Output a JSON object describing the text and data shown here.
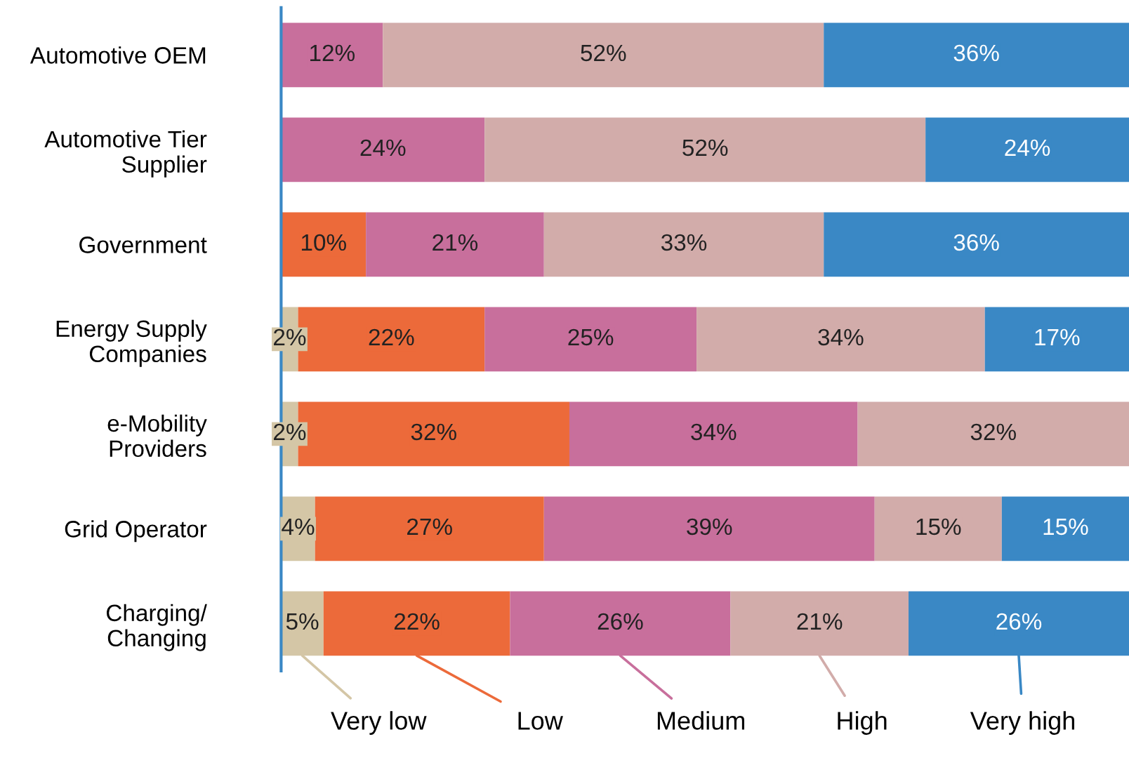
{
  "chart_data": {
    "type": "bar",
    "orientation": "horizontal",
    "stacked": true,
    "xlim": [
      0,
      100
    ],
    "tick_labels": "y",
    "legend": "bottom",
    "grid": false,
    "categories": [
      "Automotive OEM",
      "Automotive Tier\nSupplier",
      "Government",
      "Energy Supply\nCompanies",
      "e-Mobility\nProviders",
      "Grid Operator",
      "Charging/\nChanging"
    ],
    "series": [
      {
        "name": "Very low",
        "color": "#d4c6a6",
        "values": [
          null,
          null,
          null,
          2,
          2,
          4,
          5
        ],
        "value_labels": [
          null,
          null,
          null,
          "2%",
          "2%",
          "4%",
          "5%"
        ]
      },
      {
        "name": "Low",
        "color": "#ec6a3a",
        "values": [
          null,
          null,
          10,
          22,
          32,
          27,
          22
        ],
        "value_labels": [
          null,
          null,
          "10%",
          "22%",
          "32%",
          "27%",
          "22%"
        ]
      },
      {
        "name": "Medium",
        "color": "#c86f9c",
        "values": [
          12,
          24,
          21,
          25,
          34,
          39,
          26
        ],
        "value_labels": [
          "12%",
          "24%",
          "21%",
          "25%",
          "34%",
          "39%",
          "26%"
        ]
      },
      {
        "name": "High",
        "color": "#d2acaa",
        "values": [
          52,
          52,
          33,
          34,
          32,
          15,
          21
        ],
        "value_labels": [
          "52%",
          "52%",
          "33%",
          "34%",
          "32%",
          "15%",
          "21%"
        ]
      },
      {
        "name": "Very high",
        "color": "#3a88c5",
        "values": [
          36,
          24,
          36,
          17,
          null,
          15,
          26
        ],
        "value_labels": [
          "36%",
          "24%",
          "36%",
          "17%",
          null,
          "15%",
          "26%"
        ]
      }
    ]
  }
}
